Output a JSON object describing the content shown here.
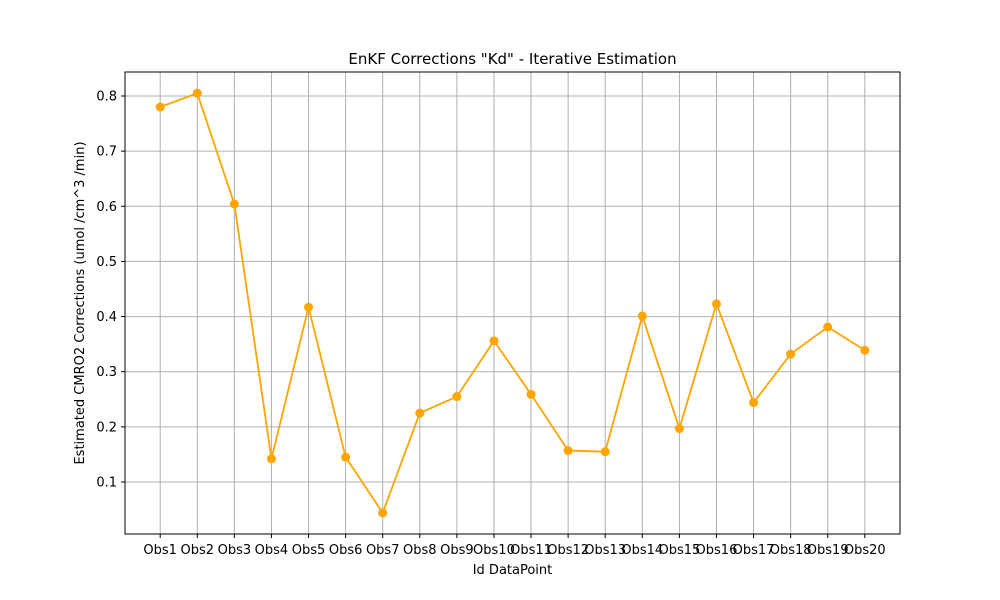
{
  "chart_data": {
    "type": "line",
    "title": "EnKF Corrections \"Kd\" - Iterative Estimation",
    "xlabel": "Id DataPoint",
    "ylabel": "Estimated CMRO2 Corrections (umol /cm^3 /min)",
    "categories": [
      "Obs1",
      "Obs2",
      "Obs3",
      "Obs4",
      "Obs5",
      "Obs6",
      "Obs7",
      "Obs8",
      "Obs9",
      "Obs10",
      "Obs11",
      "Obs12",
      "Obs13",
      "Obs14",
      "Obs15",
      "Obs16",
      "Obs17",
      "Obs18",
      "Obs19",
      "Obs20"
    ],
    "series": [
      {
        "values": [
          0.78,
          0.805,
          0.604,
          0.142,
          0.417,
          0.145,
          0.044,
          0.225,
          0.255,
          0.356,
          0.259,
          0.157,
          0.155,
          0.401,
          0.197,
          0.423,
          0.244,
          0.332,
          0.381,
          0.339
        ],
        "color": "#FFA500"
      }
    ],
    "yticks": [
      "0.1",
      "0.2",
      "0.3",
      "0.4",
      "0.5",
      "0.6",
      "0.7",
      "0.8"
    ],
    "ylim": [
      0.0057,
      0.8435
    ],
    "grid": true,
    "marker": "circle"
  }
}
